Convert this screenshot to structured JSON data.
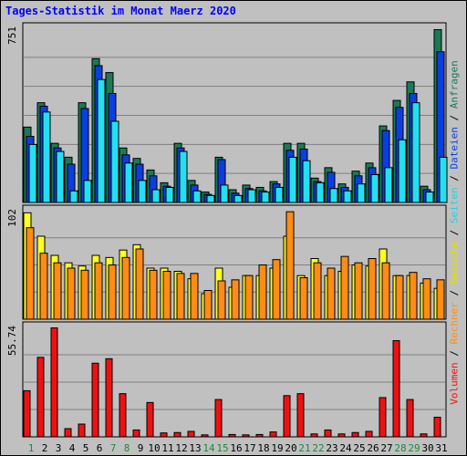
{
  "title": "Tages-Statistik im Monat Maerz 2020",
  "colors": {
    "anfragen": "#1b7a55",
    "dateien": "#0b3ee0",
    "seiten": "#22e0f0",
    "besuche": "#ffff22",
    "rechner": "#ff8c14",
    "volumen": "#ee1111",
    "day_green": "#1b8a3a",
    "day_black": "#000000"
  },
  "legend": {
    "volumen": "Volumen",
    "rechner": "Rechner",
    "besuche": "Besuche",
    "seiten": "Seiten",
    "dateien": "Dateien",
    "anfragen": "Anfragen",
    "sep": " / "
  },
  "chart_data": {
    "type": "bar",
    "categories": [
      "1",
      "2",
      "3",
      "4",
      "5",
      "6",
      "7",
      "8",
      "9",
      "10",
      "11",
      "12",
      "13",
      "14",
      "15",
      "16",
      "17",
      "18",
      "19",
      "20",
      "21",
      "22",
      "23",
      "24",
      "25",
      "26",
      "27",
      "28",
      "29",
      "30",
      "31"
    ],
    "weekend_days": [
      "1",
      "7",
      "8",
      "14",
      "15",
      "21",
      "22",
      "28",
      "29"
    ],
    "panels": [
      {
        "id": "top",
        "ymax_label": "751",
        "ylim": [
          0,
          751
        ],
        "series": [
          {
            "name": "Anfragen",
            "values": [
              325,
              430,
              255,
              195,
              430,
              620,
              560,
              235,
              190,
              140,
              85,
              255,
              95,
              45,
              195,
              55,
              75,
              65,
              90,
              255,
              255,
              105,
              150,
              80,
              135,
              170,
              330,
              440,
              520,
              70,
              745
            ]
          },
          {
            "name": "Dateien",
            "values": [
              285,
              415,
              235,
              165,
              405,
              590,
              470,
              205,
              165,
              115,
              70,
              235,
              75,
              35,
              185,
              40,
              60,
              50,
              80,
              225,
              230,
              90,
              130,
              65,
              115,
              150,
              310,
              410,
              470,
              55,
              650
            ]
          },
          {
            "name": "Seiten",
            "values": [
              250,
              390,
              220,
              50,
              95,
              530,
              350,
              170,
              95,
              55,
              65,
              220,
              50,
              30,
              75,
              30,
              55,
              45,
              65,
              195,
              180,
              85,
              60,
              50,
              80,
              120,
              150,
              270,
              430,
              45,
              195
            ]
          }
        ]
      },
      {
        "id": "middle",
        "ymax_label": "102",
        "ylim": [
          0,
          102
        ],
        "series": [
          {
            "name": "Besuche",
            "values": [
              100,
              78,
              60,
              53,
              50,
              60,
              58,
              65,
              70,
              48,
              48,
              45,
              38,
              24,
              48,
              30,
              41,
              41,
              48,
              78,
              41,
              57,
              41,
              45,
              51,
              50,
              66,
              41,
              41,
              34,
              29
            ]
          },
          {
            "name": "Rechner",
            "values": [
              86,
              62,
              53,
              48,
              46,
              53,
              51,
              58,
              66,
              46,
              45,
              43,
              43,
              27,
              36,
              37,
              41,
              51,
              56,
              101,
              39,
              53,
              48,
              59,
              53,
              57,
              53,
              41,
              44,
              38,
              37
            ]
          }
        ]
      },
      {
        "id": "bottom",
        "ymax_label": "55.74",
        "ylim": [
          0,
          55.74
        ],
        "series": [
          {
            "name": "Volumen",
            "values": [
              23.5,
              40.5,
              55.5,
              4.2,
              6.5,
              37.5,
              39.8,
              22.0,
              3.5,
              17.5,
              2.0,
              2.2,
              2.8,
              1.0,
              19.0,
              1.2,
              1.0,
              1.2,
              2.5,
              21.0,
              22.0,
              1.5,
              3.5,
              1.5,
              2.2,
              2.8,
              20.0,
              49.0,
              19.0,
              1.5,
              10.0
            ]
          }
        ]
      }
    ],
    "xlabel": "",
    "ylabel": "",
    "grid": true,
    "legend_position": "right-vertical"
  }
}
